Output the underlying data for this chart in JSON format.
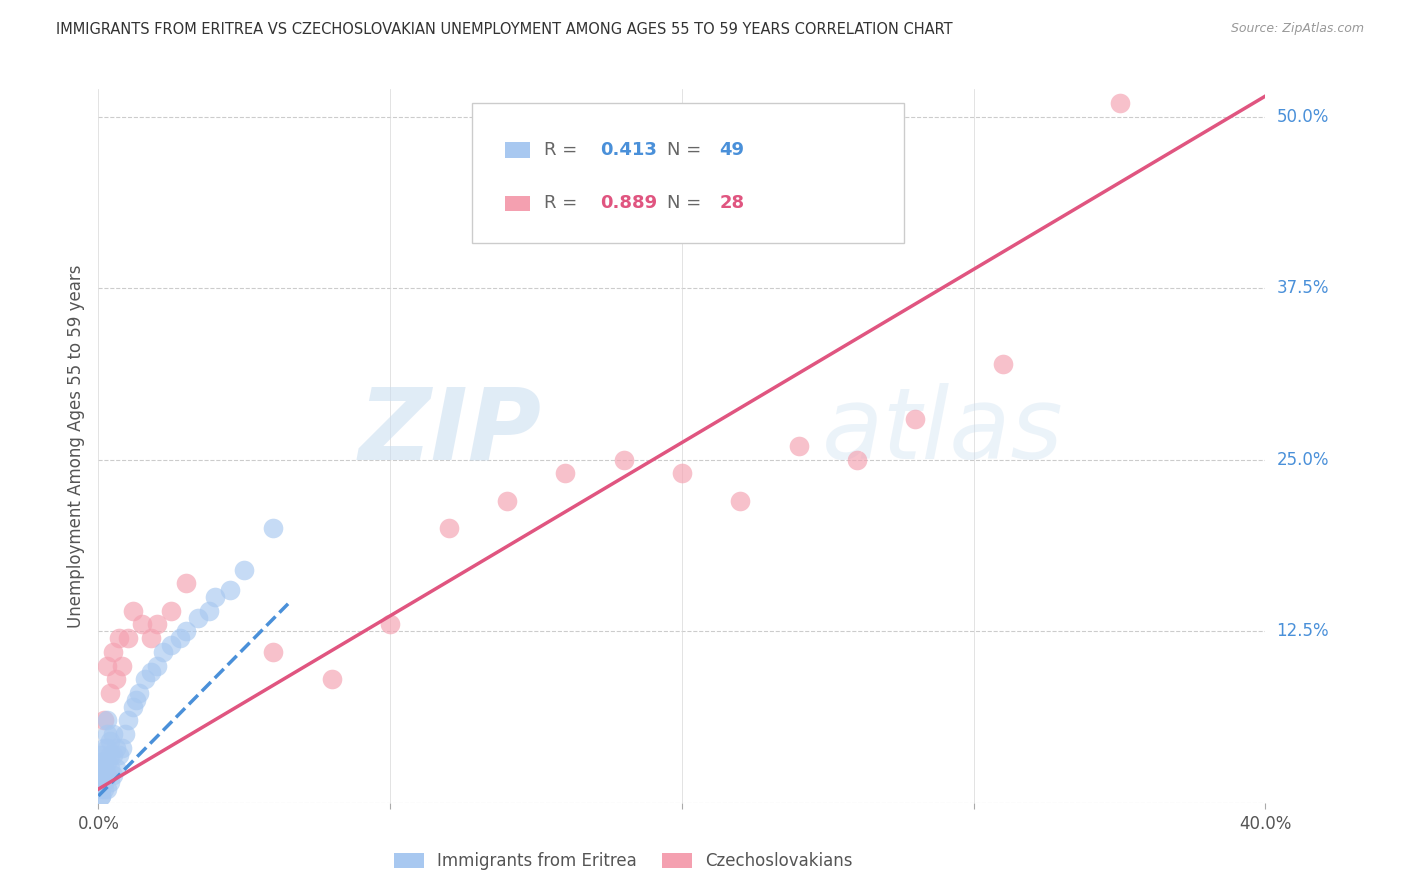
{
  "title": "IMMIGRANTS FROM ERITREA VS CZECHOSLOVAKIAN UNEMPLOYMENT AMONG AGES 55 TO 59 YEARS CORRELATION CHART",
  "source": "Source: ZipAtlas.com",
  "ylabel": "Unemployment Among Ages 55 to 59 years",
  "legend_label1": "Immigrants from Eritrea",
  "legend_label2": "Czechoslovakians",
  "R1": 0.413,
  "N1": 49,
  "R2": 0.889,
  "N2": 28,
  "color1": "#a8c8f0",
  "color2": "#f4a0b0",
  "line_color1": "#4a90d9",
  "line_color2": "#e05580",
  "xlim": [
    0.0,
    0.4
  ],
  "ylim": [
    0.0,
    0.52
  ],
  "yticks_right": [
    0.0,
    0.125,
    0.25,
    0.375,
    0.5
  ],
  "ytick_labels_right": [
    "0.0%",
    "12.5%",
    "25.0%",
    "37.5%",
    "50.0%"
  ],
  "xtick_labels": [
    "0.0%",
    "",
    "",
    "",
    "40.0%"
  ],
  "watermark_zip": "ZIP",
  "watermark_atlas": "atlas",
  "scatter1_x": [
    0.001,
    0.001,
    0.001,
    0.001,
    0.001,
    0.001,
    0.001,
    0.001,
    0.002,
    0.002,
    0.002,
    0.002,
    0.002,
    0.002,
    0.003,
    0.003,
    0.003,
    0.003,
    0.003,
    0.003,
    0.004,
    0.004,
    0.004,
    0.004,
    0.005,
    0.005,
    0.005,
    0.006,
    0.006,
    0.007,
    0.008,
    0.009,
    0.01,
    0.012,
    0.013,
    0.014,
    0.016,
    0.018,
    0.02,
    0.022,
    0.025,
    0.028,
    0.03,
    0.034,
    0.038,
    0.04,
    0.045,
    0.05,
    0.06
  ],
  "scatter1_y": [
    0.005,
    0.01,
    0.015,
    0.02,
    0.025,
    0.03,
    0.035,
    0.005,
    0.01,
    0.015,
    0.02,
    0.025,
    0.03,
    0.04,
    0.01,
    0.02,
    0.03,
    0.04,
    0.05,
    0.06,
    0.015,
    0.025,
    0.035,
    0.045,
    0.02,
    0.035,
    0.05,
    0.025,
    0.04,
    0.035,
    0.04,
    0.05,
    0.06,
    0.07,
    0.075,
    0.08,
    0.09,
    0.095,
    0.1,
    0.11,
    0.115,
    0.12,
    0.125,
    0.135,
    0.14,
    0.15,
    0.155,
    0.17,
    0.2
  ],
  "scatter2_x": [
    0.002,
    0.003,
    0.004,
    0.005,
    0.006,
    0.007,
    0.008,
    0.01,
    0.012,
    0.015,
    0.018,
    0.02,
    0.025,
    0.03,
    0.06,
    0.08,
    0.1,
    0.12,
    0.14,
    0.16,
    0.18,
    0.2,
    0.22,
    0.24,
    0.26,
    0.28,
    0.31,
    0.35
  ],
  "scatter2_y": [
    0.06,
    0.1,
    0.08,
    0.11,
    0.09,
    0.12,
    0.1,
    0.12,
    0.14,
    0.13,
    0.12,
    0.13,
    0.14,
    0.16,
    0.11,
    0.09,
    0.13,
    0.2,
    0.22,
    0.24,
    0.25,
    0.24,
    0.22,
    0.26,
    0.25,
    0.28,
    0.32,
    0.51
  ],
  "line1_x0": 0.0,
  "line1_x1": 0.065,
  "line1_y0": 0.005,
  "line1_y1": 0.145,
  "line2_x0": 0.0,
  "line2_x1": 0.4,
  "line2_y0": 0.01,
  "line2_y1": 0.515
}
